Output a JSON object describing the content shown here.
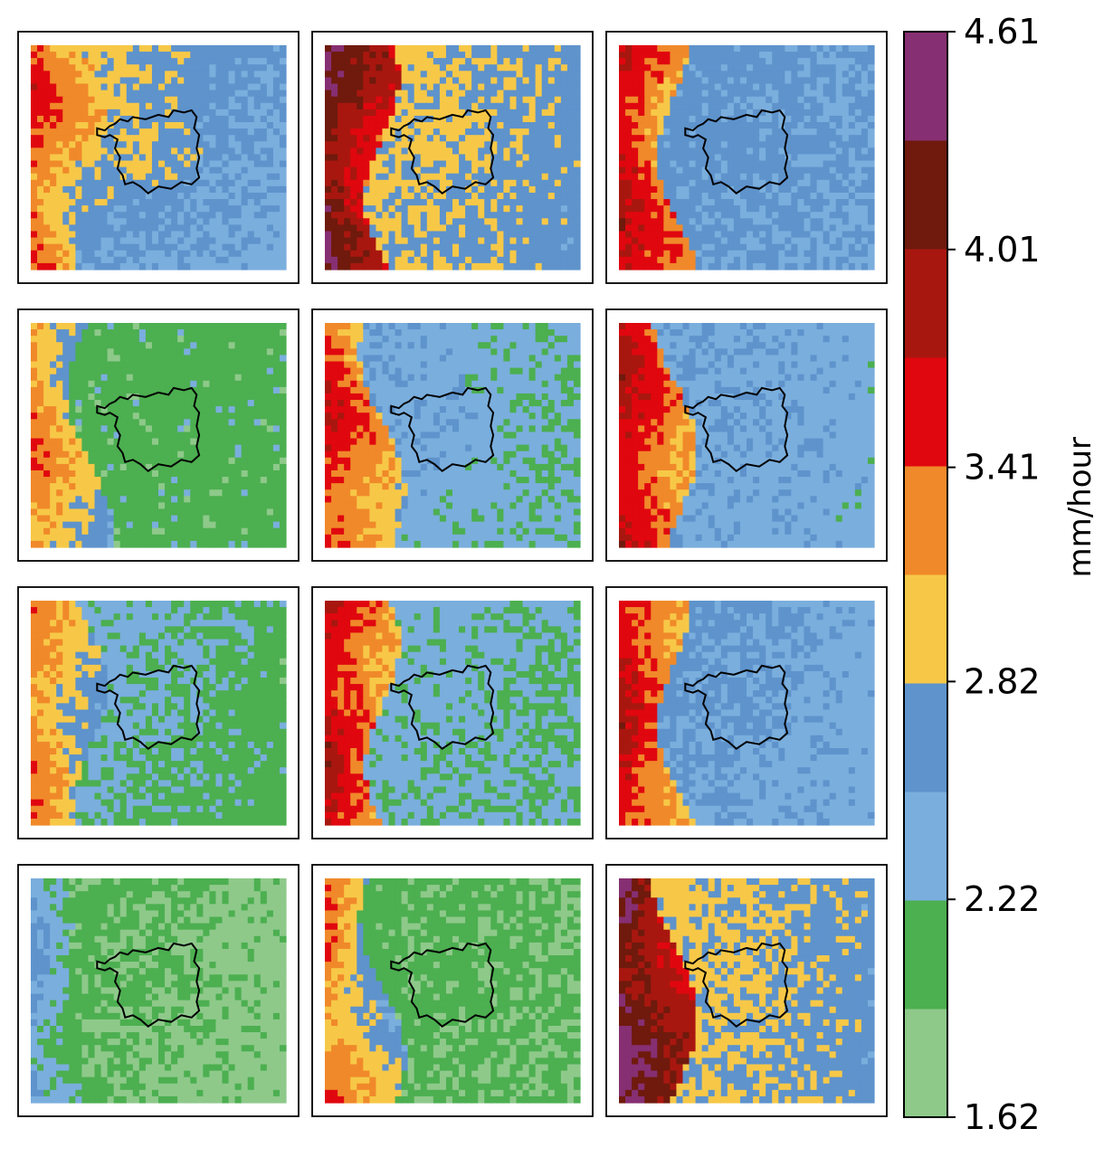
{
  "chart_data": {
    "type": "heatmap",
    "layout": {
      "rows": 4,
      "cols": 3
    },
    "title": "",
    "colorbar": {
      "label": "mm/hour",
      "tick_labels": [
        "4.61",
        "4.01",
        "3.41",
        "2.82",
        "2.22",
        "1.62"
      ],
      "tick_values": [
        4.61,
        4.01,
        3.41,
        2.82,
        2.22,
        1.62
      ],
      "range": [
        1.62,
        4.61
      ],
      "levels": 10,
      "colors": [
        "#8ec98a",
        "#4caf50",
        "#7aaedd",
        "#5e93cc",
        "#f7c847",
        "#f0892a",
        "#e0070f",
        "#a8170f",
        "#6f1a0d",
        "#862f72",
        "#000000"
      ]
    },
    "panels": [
      {
        "name": "panel-r1c1",
        "description_levels": {
          "west": 5.5,
          "east": 2.5,
          "south_east": 1.5
        }
      },
      {
        "name": "panel-r1c2",
        "description_levels": {
          "west": 8.0,
          "center": 4.0,
          "east": 3.0
        }
      },
      {
        "name": "panel-r1c3",
        "description_levels": {
          "west": 6.5,
          "center": 3.0,
          "east": 2.5
        }
      },
      {
        "name": "panel-r2c1",
        "description_levels": {
          "west": 5.0,
          "center": 1.0,
          "east": 1.0
        }
      },
      {
        "name": "panel-r2c2",
        "description_levels": {
          "west": 6.0,
          "center": 2.5,
          "east": 1.5
        }
      },
      {
        "name": "panel-r2c3",
        "description_levels": {
          "west": 6.5,
          "center": 2.5,
          "east": 2.0
        }
      },
      {
        "name": "panel-r3c1",
        "description_levels": {
          "west": 5.0,
          "center": 2.0,
          "east": 1.0
        }
      },
      {
        "name": "panel-r3c2",
        "description_levels": {
          "west": 6.5,
          "center": 2.0,
          "east": 1.5
        }
      },
      {
        "name": "panel-r3c3",
        "description_levels": {
          "west": 6.5,
          "center": 3.0,
          "east": 2.0
        }
      },
      {
        "name": "panel-r4c1",
        "description_levels": {
          "west": 2.5,
          "center": 1.0,
          "east": 0.0
        }
      },
      {
        "name": "panel-r4c2",
        "description_levels": {
          "west": 5.0,
          "center": 1.0,
          "east": 0.5
        }
      },
      {
        "name": "panel-r4c3",
        "description_levels": {
          "west": 8.5,
          "center": 4.0,
          "east": 3.0
        }
      }
    ]
  }
}
